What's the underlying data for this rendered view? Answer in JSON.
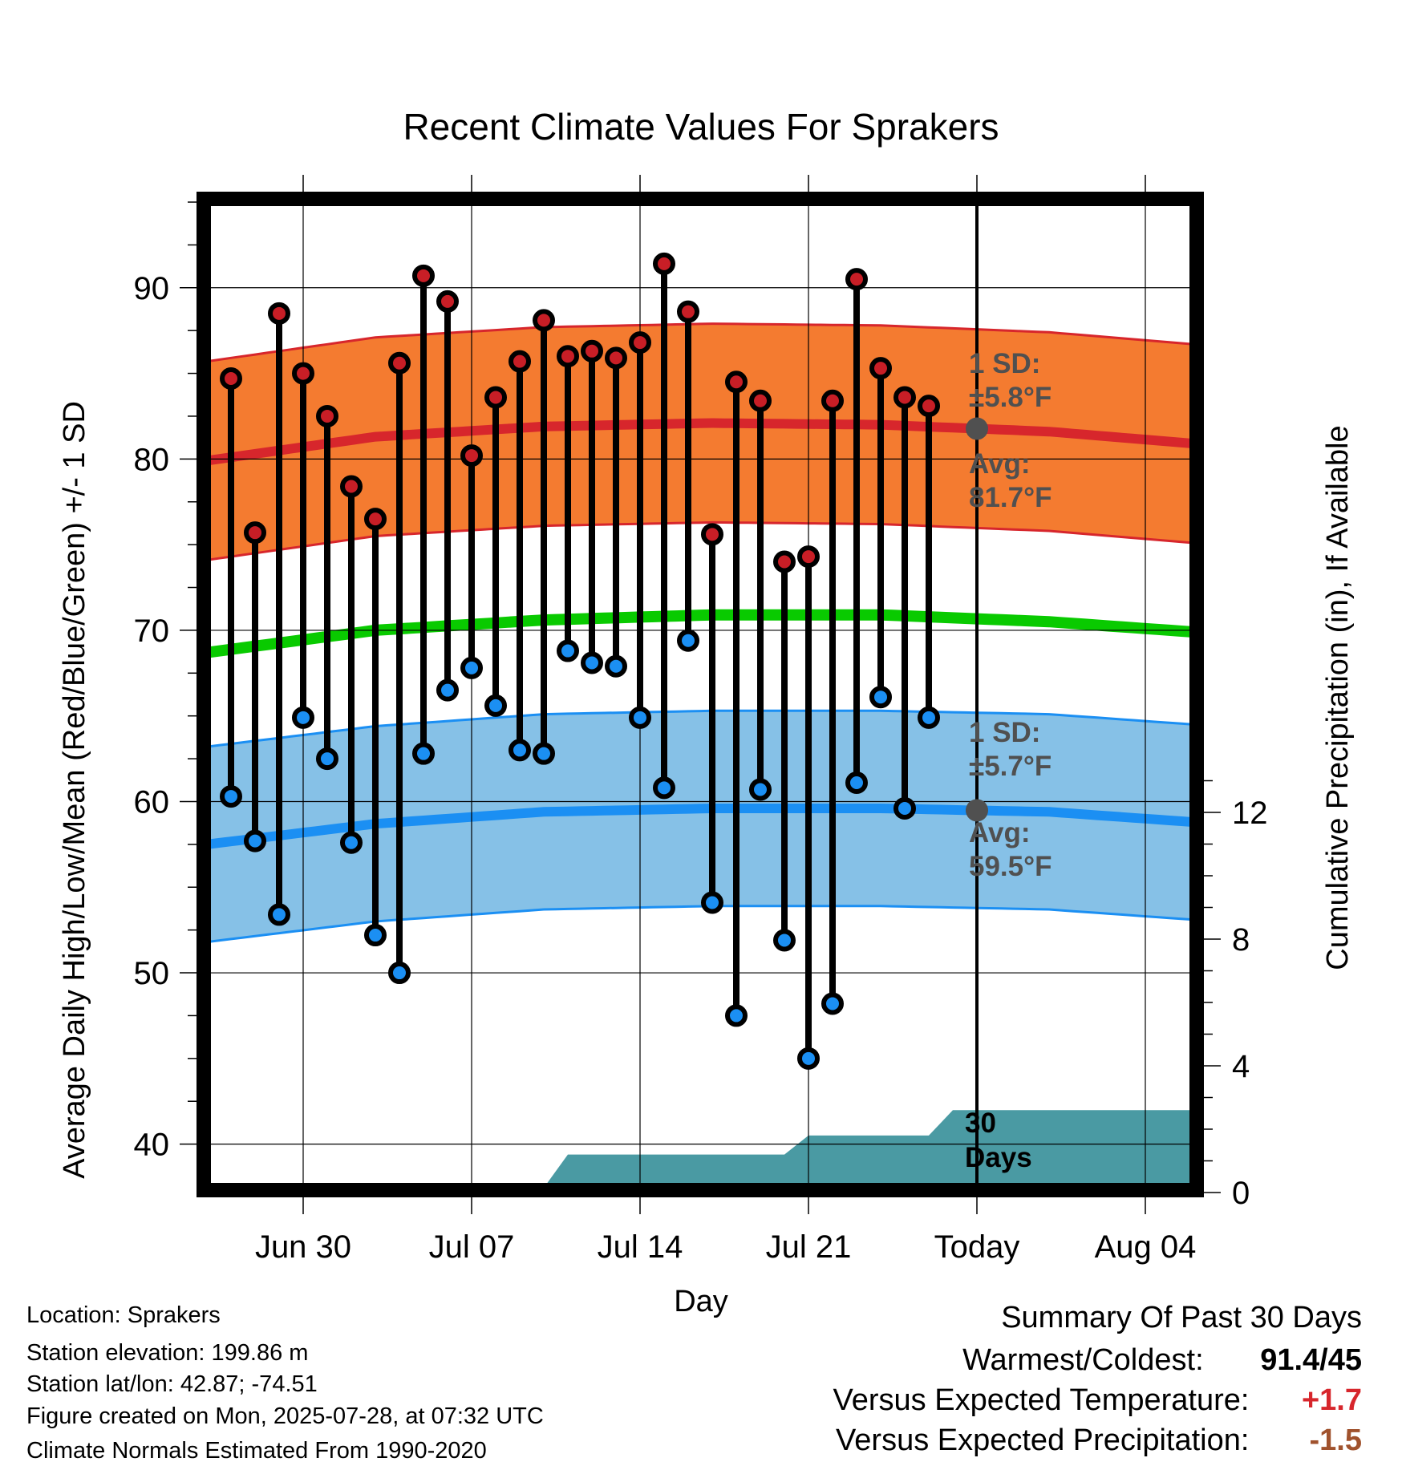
{
  "chart_data": {
    "type": "line",
    "title": "Recent Climate Values For Sprakers",
    "xlabel": "Day",
    "ylabel": "Average Daily High/Low/Mean (Red/Blue/Green) +/- 1 SD",
    "y2label": "Cumulative Precipitation (in), If Available",
    "xlim": [
      "2025-06-26",
      "2025-08-06"
    ],
    "ylim": [
      37.5,
      95
    ],
    "y2lim": [
      0,
      22
    ],
    "x_ticks": [
      "2025-06-30",
      "2025-07-07",
      "2025-07-14",
      "2025-07-21",
      "2025-07-28",
      "2025-08-04"
    ],
    "x_tick_labels": [
      "Jun 30",
      "Jul 07",
      "Jul 14",
      "Jul 21",
      "Today",
      "Aug 04"
    ],
    "y_ticks": [
      40,
      50,
      60,
      70,
      80,
      90
    ],
    "y2_ticks": [
      0,
      4,
      8,
      12
    ],
    "today": "2025-07-28",
    "grid": true,
    "colors": {
      "high_band": "#f47b30",
      "high_avg": "#d7262c",
      "high_marker": "#c81e26",
      "low_band": "#86c1e7",
      "low_avg": "#1b8ff3",
      "low_marker": "#1b8ff3",
      "mean": "#09ca00",
      "precip": "#4a9aa3",
      "annotation": "#505050"
    },
    "normals": {
      "x": [
        "2025-06-26",
        "2025-07-03",
        "2025-07-10",
        "2025-07-17",
        "2025-07-24",
        "2025-07-31",
        "2025-08-06"
      ],
      "high_avg": [
        79.9,
        81.3,
        81.9,
        82.1,
        82.0,
        81.6,
        80.9
      ],
      "high_sd": [
        5.8,
        5.8,
        5.8,
        5.8,
        5.8,
        5.8,
        5.8
      ],
      "low_avg": [
        57.5,
        58.7,
        59.4,
        59.6,
        59.6,
        59.4,
        58.8
      ],
      "low_sd": [
        5.7,
        5.7,
        5.7,
        5.7,
        5.7,
        5.7,
        5.7
      ],
      "mean": [
        68.7,
        70.0,
        70.6,
        70.9,
        70.9,
        70.5,
        69.9
      ]
    },
    "daily": {
      "x": [
        "2025-06-27",
        "2025-06-28",
        "2025-06-29",
        "2025-06-30",
        "2025-07-01",
        "2025-07-02",
        "2025-07-03",
        "2025-07-04",
        "2025-07-05",
        "2025-07-06",
        "2025-07-07",
        "2025-07-08",
        "2025-07-09",
        "2025-07-10",
        "2025-07-11",
        "2025-07-12",
        "2025-07-13",
        "2025-07-14",
        "2025-07-15",
        "2025-07-16",
        "2025-07-17",
        "2025-07-18",
        "2025-07-19",
        "2025-07-20",
        "2025-07-21",
        "2025-07-22",
        "2025-07-23",
        "2025-07-24",
        "2025-07-25",
        "2025-07-26",
        "2025-07-27"
      ],
      "high": [
        84.7,
        75.7,
        88.5,
        85.0,
        82.5,
        78.4,
        76.5,
        85.6,
        90.7,
        89.2,
        80.2,
        83.6,
        85.7,
        88.1,
        86.0,
        86.3,
        85.9,
        86.8,
        91.4,
        88.6,
        75.6,
        84.5,
        83.4,
        74.0,
        74.3,
        83.4,
        90.5,
        85.3,
        83.6,
        83.1,
        null
      ],
      "low": [
        60.3,
        57.7,
        53.4,
        64.9,
        62.5,
        57.6,
        52.2,
        50.0,
        62.8,
        66.5,
        67.8,
        65.6,
        63.0,
        62.8,
        68.8,
        68.1,
        67.9,
        64.9,
        60.8,
        69.4,
        54.1,
        47.5,
        60.7,
        51.9,
        45.0,
        48.2,
        61.1,
        66.1,
        59.6,
        64.9,
        null
      ]
    },
    "precip_cumulative": {
      "x": [
        "2025-06-26",
        "2025-07-01",
        "2025-07-02",
        "2025-07-03",
        "2025-07-10",
        "2025-07-11",
        "2025-07-12",
        "2025-07-18",
        "2025-07-20",
        "2025-07-21",
        "2025-07-26",
        "2025-07-27",
        "2025-08-06"
      ],
      "y": [
        0,
        0,
        0.15,
        0.15,
        0.15,
        1.2,
        1.2,
        1.2,
        1.2,
        1.8,
        1.8,
        2.6,
        2.6
      ]
    },
    "annotations": {
      "high_sd_label": "1 SD:",
      "high_sd_value": "±5.8°F",
      "high_avg_label": "Avg:",
      "high_avg_value": "81.7°F",
      "low_sd_label": "1 SD:",
      "low_sd_value": "±5.7°F",
      "low_avg_label": "Avg:",
      "low_avg_value": "59.5°F",
      "days_count": "30",
      "days_label": "Days"
    }
  },
  "info": {
    "location": "Location: Sprakers",
    "elevation": "Station elevation: 199.86 m",
    "latlon": "Station lat/lon: 42.87; -74.51",
    "created": "Figure created on Mon, 2025-07-28, at 07:32 UTC",
    "normals_note": "Climate Normals Estimated From 1990-2020"
  },
  "summary": {
    "title": "Summary Of Past 30 Days",
    "warmest_label": "Warmest/Coldest:",
    "warmest_value": "91.4/45",
    "temp_label": "Versus Expected Temperature:",
    "temp_value": "+1.7",
    "temp_color": "#d7262c",
    "precip_label": "Versus Expected Precipitation:",
    "precip_value": "-1.5",
    "precip_color": "#a0522d"
  }
}
